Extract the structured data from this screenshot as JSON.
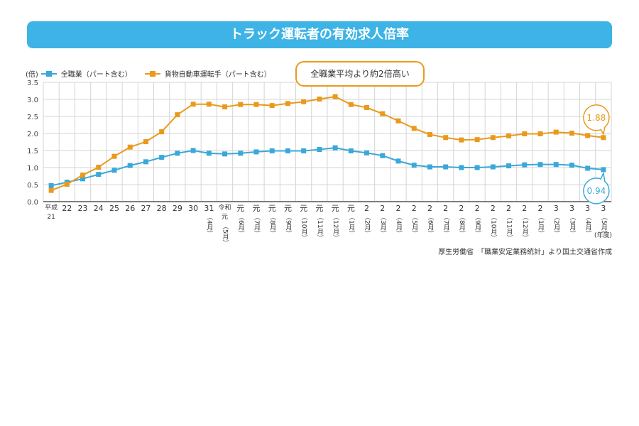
{
  "title": "トラック運転者の有効求人倍率",
  "callout": "全職業平均より約2倍高い",
  "unit_x": "(年度)",
  "source": "厚生労働省　「職業安定業務統計」より国土交通省作成",
  "colors": {
    "title_bg": "#3db3e6",
    "all_jobs": "#3aa8d8",
    "truck": "#e99a1c"
  },
  "chart_data": {
    "type": "line",
    "title": "トラック運転者の有効求人倍率",
    "ylabel": "(倍)",
    "xlabel": "(年度)",
    "ylim": [
      0,
      3.5
    ],
    "yticks": [
      "0.0",
      "0.5",
      "1.0",
      "1.5",
      "2.0",
      "2.5",
      "3.0",
      "3.5"
    ],
    "grid": true,
    "legend_placement": "top-left",
    "categories": [
      [
        "平成",
        "21"
      ],
      [
        "22"
      ],
      [
        "23"
      ],
      [
        "24"
      ],
      [
        "25"
      ],
      [
        "26"
      ],
      [
        "27"
      ],
      [
        "28"
      ],
      [
        "29"
      ],
      [
        "30"
      ],
      [
        "31",
        "（4月）"
      ],
      [
        "令和",
        "元",
        "（5月）"
      ],
      [
        "元",
        "（6月）"
      ],
      [
        "元",
        "（7月）"
      ],
      [
        "元",
        "（8月）"
      ],
      [
        "元",
        "（9月）"
      ],
      [
        "元",
        "（10月）"
      ],
      [
        "元",
        "（11月）"
      ],
      [
        "元",
        "（12月）"
      ],
      [
        "元",
        "（1月）"
      ],
      [
        "2",
        "（2月）"
      ],
      [
        "2",
        "（3月）"
      ],
      [
        "2",
        "（4月）"
      ],
      [
        "2",
        "（5月）"
      ],
      [
        "2",
        "（6月）"
      ],
      [
        "2",
        "（7月）"
      ],
      [
        "2",
        "（8月）"
      ],
      [
        "2",
        "（9月）"
      ],
      [
        "2",
        "（10月）"
      ],
      [
        "2",
        "（11月）"
      ],
      [
        "2",
        "（12月）"
      ],
      [
        "2",
        "（1月）"
      ],
      [
        "3",
        "（2月）"
      ],
      [
        "3",
        "（3月）"
      ],
      [
        "3",
        "（4月）"
      ],
      [
        "3",
        "（5月）"
      ]
    ],
    "series": [
      {
        "name": "全職業（パート含む）",
        "color": "#3aa8d8",
        "values": [
          0.47,
          0.57,
          0.67,
          0.8,
          0.92,
          1.06,
          1.17,
          1.3,
          1.42,
          1.5,
          1.42,
          1.4,
          1.42,
          1.46,
          1.49,
          1.49,
          1.49,
          1.53,
          1.58,
          1.49,
          1.43,
          1.35,
          1.19,
          1.07,
          1.02,
          1.02,
          1.0,
          1.0,
          1.02,
          1.05,
          1.08,
          1.09,
          1.09,
          1.07,
          0.98,
          0.94
        ],
        "end_label": "0.94"
      },
      {
        "name": "貨物自動車運転手（パート含む）",
        "color": "#e99a1c",
        "values": [
          0.33,
          0.51,
          0.78,
          1.01,
          1.33,
          1.6,
          1.76,
          2.05,
          2.55,
          2.86,
          2.86,
          2.78,
          2.85,
          2.85,
          2.82,
          2.88,
          2.93,
          3.01,
          3.08,
          2.85,
          2.76,
          2.58,
          2.37,
          2.15,
          1.97,
          1.88,
          1.81,
          1.82,
          1.88,
          1.93,
          1.99,
          1.99,
          2.04,
          2.01,
          1.94,
          1.88
        ],
        "end_label": "1.88"
      }
    ]
  }
}
